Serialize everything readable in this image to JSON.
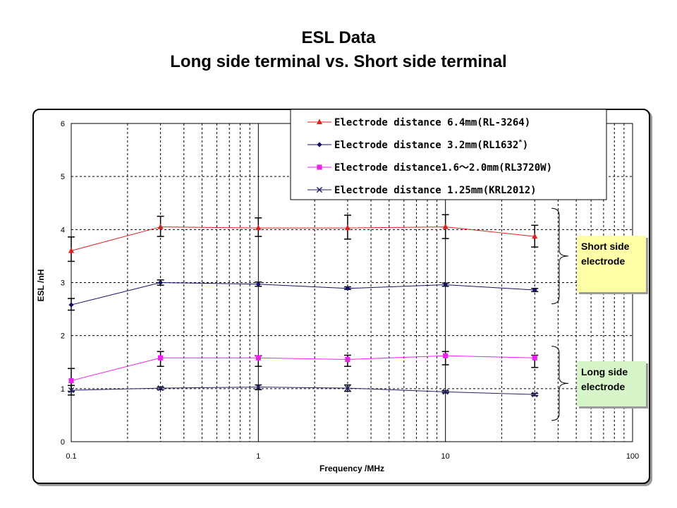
{
  "header": {
    "title_line1": "ESL Data",
    "title_line2": "Long side terminal vs. Short side terminal"
  },
  "chart_data": {
    "type": "line",
    "x_scale": "log",
    "xlim": [
      0.1,
      100
    ],
    "ylim": [
      0,
      6
    ],
    "xlabel": "Frequency /MHz",
    "ylabel": "ESL /nH",
    "x_ticks": [
      "0.1",
      "1",
      "10",
      "100"
    ],
    "y_ticks": [
      "0",
      "1",
      "2",
      "3",
      "4",
      "5",
      "6"
    ],
    "grid": true,
    "legend_position": "top-right",
    "x": [
      0.1,
      0.3,
      1,
      3,
      10,
      30
    ],
    "series": [
      {
        "name": "Electrode distance 6.4mm(RL-3264)",
        "marker": "triangle",
        "color": "#dd2222",
        "values": [
          3.6,
          4.05,
          4.03,
          4.03,
          4.05,
          3.87
        ],
        "err_low": [
          3.4,
          3.87,
          3.87,
          3.82,
          3.83,
          3.67
        ],
        "err_high": [
          3.86,
          4.25,
          4.22,
          4.27,
          4.28,
          4.08
        ]
      },
      {
        "name": "Electrode distance 3.2mm(RL1632",
        "name_suffix": "*",
        "name_end": ")",
        "marker": "diamond",
        "color": "#111166",
        "values": [
          2.58,
          3.0,
          2.97,
          2.89,
          2.96,
          2.86
        ],
        "err_low": [
          2.48,
          2.95,
          2.93,
          2.87,
          2.93,
          2.83
        ],
        "err_high": [
          2.7,
          3.05,
          3.01,
          2.92,
          2.99,
          2.89
        ]
      },
      {
        "name": "Electrode distance1.6～2.0mm(RL3720W)",
        "marker": "square",
        "color": "#ee22ee",
        "values": [
          1.15,
          1.58,
          1.58,
          1.55,
          1.62,
          1.58
        ],
        "err_low": [
          0.95,
          1.42,
          1.42,
          1.42,
          1.45,
          1.4
        ],
        "err_high": [
          1.38,
          1.7,
          1.62,
          1.63,
          1.7,
          1.63
        ]
      },
      {
        "name": "Electrode distance 1.25mm(KRL2012)",
        "marker": "x",
        "color": "#222266",
        "values": [
          0.97,
          1.01,
          1.03,
          1.01,
          0.94,
          0.89
        ],
        "err_low": [
          0.88,
          0.98,
          0.98,
          0.95,
          0.92,
          0.87
        ],
        "err_high": [
          1.06,
          1.03,
          1.07,
          1.07,
          0.96,
          0.91
        ]
      }
    ],
    "annotations": [
      {
        "line1": "Short side",
        "line2": "electrode",
        "color": "#ffffa8"
      },
      {
        "line1": "Long side",
        "line2": "electrode",
        "color": "#d6f5c8"
      }
    ]
  }
}
